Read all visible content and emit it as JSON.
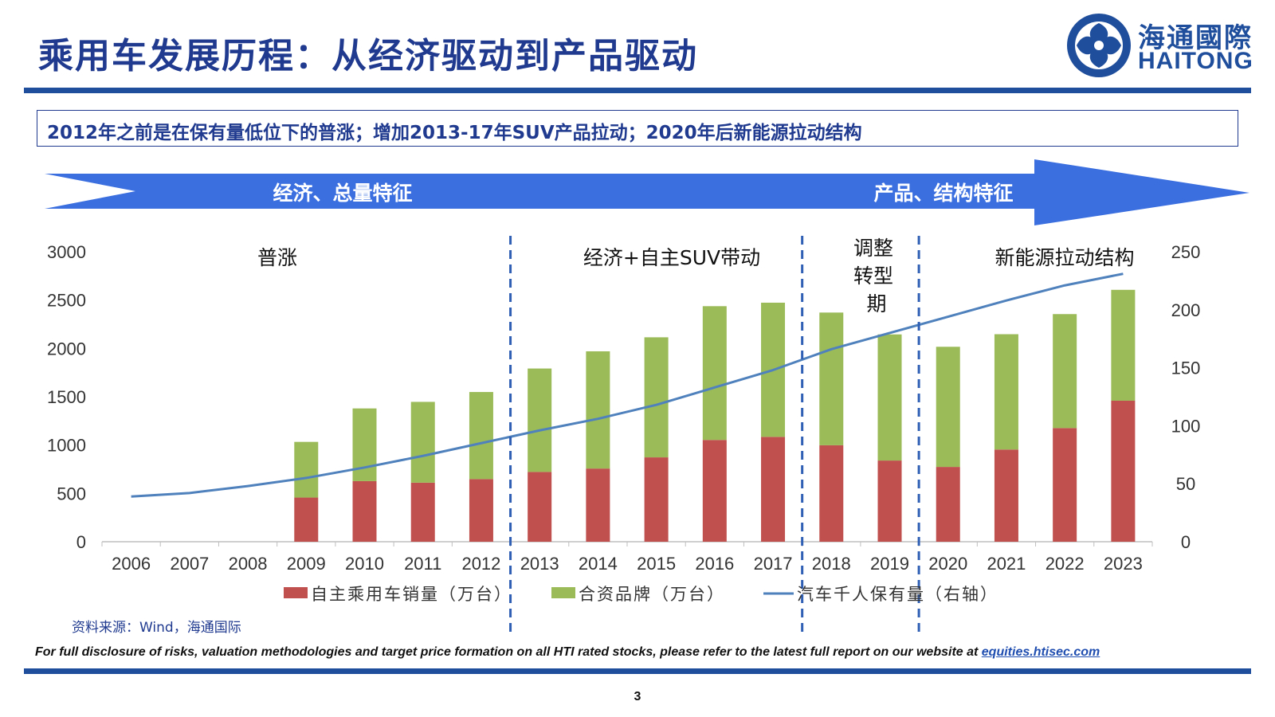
{
  "header": {
    "title": "乘用车发展历程：从经济驱动到产品驱动",
    "logo_cn": "海通國際",
    "logo_en": "HAITONG"
  },
  "subtitle": "2012年之前是在保有量低位下的普涨；增加2013-17年SUV产品拉动；2020年后新能源拉动结构",
  "arrow": {
    "left_label": "经济、总量特征",
    "right_label": "产品、结构特征",
    "color": "#3b6fe0"
  },
  "phases": [
    "普涨",
    "经济+自主SUV带动",
    "调整转型期",
    "新能源拉动结构"
  ],
  "chart_data": {
    "type": "bar",
    "stacked": true,
    "categories": [
      "2006",
      "2007",
      "2008",
      "2009",
      "2010",
      "2011",
      "2012",
      "2013",
      "2014",
      "2015",
      "2016",
      "2017",
      "2018",
      "2019",
      "2020",
      "2021",
      "2022",
      "2023"
    ],
    "series": [
      {
        "name": "自主乘用车销量（万台）",
        "type": "bar",
        "axis": "left",
        "color": "#c0504d",
        "values": [
          null,
          null,
          null,
          457,
          627,
          611,
          648,
          722,
          757,
          873,
          1053,
          1085,
          998,
          840,
          774,
          954,
          1176,
          1459
        ]
      },
      {
        "name": "合资品牌（万台）",
        "type": "bar",
        "axis": "left",
        "color": "#9bbb59",
        "values": [
          null,
          null,
          null,
          576,
          752,
          836,
          901,
          1070,
          1213,
          1242,
          1384,
          1388,
          1373,
          1305,
          1243,
          1193,
          1179,
          1147
        ]
      },
      {
        "name": "汽车千人保有量（右轴）",
        "type": "line",
        "axis": "right",
        "color": "#4f81bd",
        "values": [
          39,
          42,
          48,
          55,
          64,
          74,
          85,
          96,
          106,
          118,
          133,
          148,
          166,
          180,
          194,
          208,
          221,
          231
        ]
      }
    ],
    "ylim_left": [
      0,
      3000
    ],
    "yticks_left": [
      0,
      500,
      1000,
      1500,
      2000,
      2500,
      3000
    ],
    "ylim_right": [
      0,
      250
    ],
    "yticks_right": [
      0,
      50,
      100,
      150,
      200,
      250
    ],
    "legend_position": "bottom",
    "grid": false
  },
  "source": "资料来源：Wind，海通国际",
  "disclaimer": {
    "text": "For full disclosure of risks, valuation methodologies and target price formation on all HTI rated stocks, please refer to the latest full report on our website at ",
    "link": "equities.htisec.com"
  },
  "page_number": "3"
}
